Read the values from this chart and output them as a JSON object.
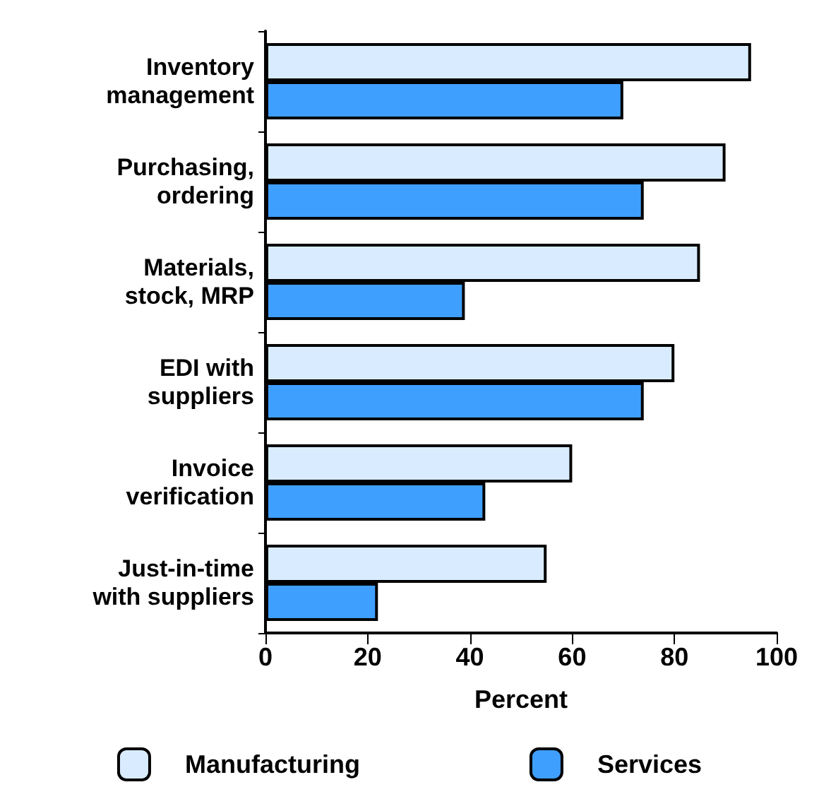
{
  "chart_data": {
    "type": "bar",
    "orientation": "horizontal",
    "xlabel": "Percent",
    "categories": [
      "Inventory\nmanagement",
      "Purchasing,\nordering",
      "Materials,\nstock, MRP",
      "EDI with\nsuppliers",
      "Invoice\nverification",
      "Just-in-time\nwith suppliers"
    ],
    "series": [
      {
        "name": "Manufacturing",
        "color": "#d9ecff",
        "values": [
          95,
          90,
          85,
          80,
          60,
          55
        ]
      },
      {
        "name": "Services",
        "color": "#3f9fff",
        "values": [
          70,
          74,
          39,
          74,
          43,
          22
        ]
      }
    ],
    "xlim": [
      0,
      100
    ],
    "xticks": [
      0,
      20,
      40,
      60,
      80,
      100
    ],
    "grid": false,
    "legend": "bottom"
  }
}
